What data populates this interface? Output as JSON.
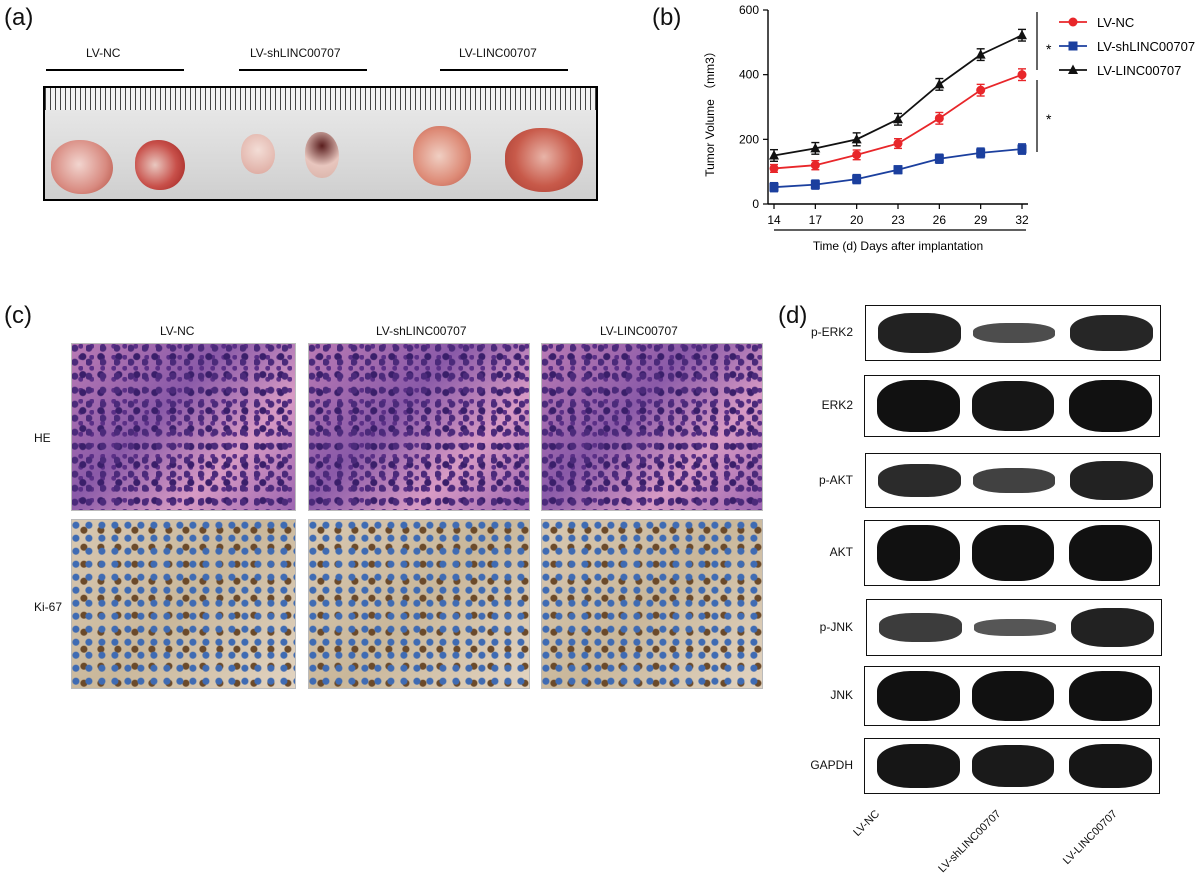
{
  "panels": {
    "a": {
      "letter": "(a)",
      "groups": [
        "LV-NC",
        "LV-shLINC00707",
        "LV-LINC00707"
      ]
    },
    "b": {
      "letter": "(b)",
      "legend": [
        "LV-NC",
        "LV-shLINC00707",
        "LV-LINC00707"
      ],
      "sig1": "*",
      "sig2": "*"
    },
    "c": {
      "letter": "(c)",
      "columns": [
        "LV-NC",
        "LV-shLINC00707",
        "LV-LINC00707"
      ],
      "rows": [
        "HE",
        "Ki-67"
      ]
    },
    "d": {
      "letter": "(d)",
      "proteins": [
        "p-ERK2",
        "ERK2",
        "p-AKT",
        "AKT",
        "p-JNK",
        "JNK",
        "GAPDH"
      ],
      "lanes": [
        "LV-NC",
        "LV-shLINC00707",
        "LV-LINC00707"
      ],
      "band_intensity": [
        [
          0.85,
          0.45,
          0.8
        ],
        [
          1.0,
          0.95,
          1.0
        ],
        [
          0.75,
          0.55,
          0.85
        ],
        [
          1.0,
          1.0,
          1.0
        ],
        [
          0.6,
          0.35,
          0.85
        ],
        [
          1.0,
          1.0,
          1.0
        ],
        [
          0.95,
          0.9,
          0.95
        ]
      ]
    }
  },
  "colors": {
    "LV-NC": "#e8262a",
    "LV-shLINC00707": "#1b3f9e",
    "LV-LINC00707": "#111111"
  },
  "chart_data": {
    "type": "line",
    "title": "",
    "xlabel": "Time (d) Days after implantation",
    "ylabel": "Tumor Volume （mm3）",
    "x": [
      14,
      17,
      20,
      23,
      26,
      29,
      32
    ],
    "ylim": [
      0,
      600
    ],
    "yticks": [
      0,
      200,
      400,
      600
    ],
    "series": [
      {
        "name": "LV-NC",
        "values": [
          110,
          120,
          152,
          187,
          265,
          352,
          400
        ],
        "err": [
          12,
          14,
          15,
          15,
          18,
          18,
          18
        ],
        "marker": "circle"
      },
      {
        "name": "LV-shLINC00707",
        "values": [
          52,
          60,
          77,
          106,
          140,
          158,
          170
        ],
        "err": [
          14,
          14,
          14,
          12,
          14,
          15,
          16
        ],
        "marker": "square"
      },
      {
        "name": "LV-LINC00707",
        "values": [
          150,
          172,
          200,
          262,
          370,
          462,
          522
        ],
        "err": [
          18,
          18,
          20,
          18,
          18,
          18,
          18
        ],
        "marker": "triangle"
      }
    ]
  }
}
